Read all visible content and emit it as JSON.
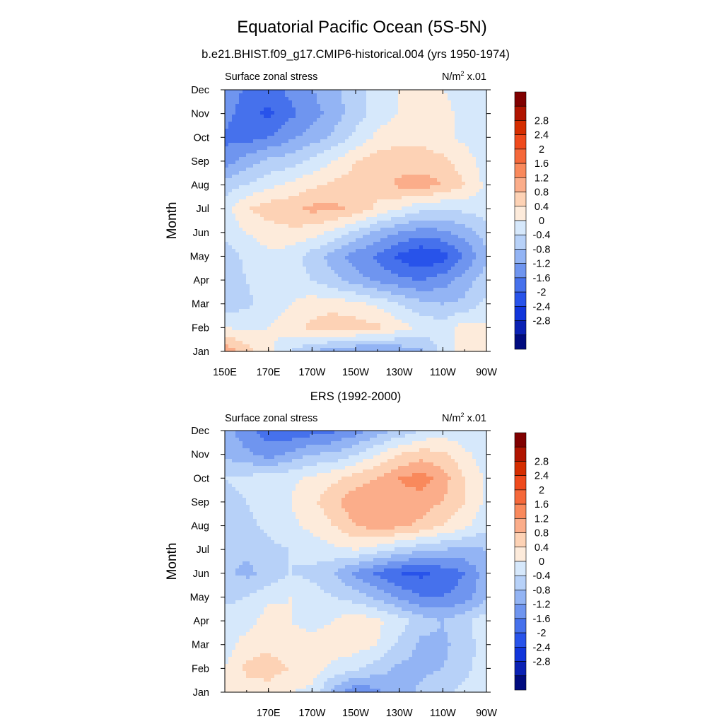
{
  "figure": {
    "title": "Equatorial Pacific Ocean (5S-5N)"
  },
  "chart_data": [
    {
      "type": "heatmap",
      "title": "b.e21.BHIST.f09_g17.CMIP6-historical.004 (yrs 1950-1974)",
      "left_label": "Surface zonal stress",
      "units_base": "N/m",
      "units_sup": "2",
      "units_tail": " x.01",
      "ylabel": "Month",
      "x_ticks": [
        "150E",
        "170E",
        "170W",
        "150W",
        "130W",
        "110W",
        "90W"
      ],
      "x_values": [
        150,
        170,
        190,
        210,
        230,
        250,
        270
      ],
      "xlim": [
        150,
        270
      ],
      "y_ticks": [
        "Jan",
        "Feb",
        "Mar",
        "Apr",
        "May",
        "Jun",
        "Jul",
        "Aug",
        "Sep",
        "Oct",
        "Nov",
        "Dec"
      ],
      "ylim": [
        1,
        12
      ],
      "grid": false,
      "legend": "right",
      "colorbar_levels": [
        "2.8",
        "2.4",
        "2",
        "1.6",
        "1.2",
        "0.8",
        "0.4",
        "0",
        "-0.4",
        "-0.8",
        "-1.2",
        "-1.6",
        "-2",
        "-2.4",
        "-2.8"
      ],
      "colorbar_colors": [
        "#800000",
        "#b01400",
        "#d52d00",
        "#ef4a1c",
        "#f5683a",
        "#f9895c",
        "#fbad8a",
        "#fdd2b5",
        "#fdebdb",
        "#d6e8fb",
        "#b7d1f8",
        "#93b4f4",
        "#6f95ef",
        "#4671ec",
        "#2853ea",
        "#1135db",
        "#0a21b4",
        "#000b7f"
      ],
      "grid_x": [
        150,
        160,
        170,
        180,
        190,
        200,
        210,
        220,
        230,
        240,
        250,
        260,
        270
      ],
      "values": [
        [
          1.5,
          1.0,
          0.5,
          0.0,
          -0.4,
          -0.7,
          -0.8,
          -0.8,
          -0.7,
          -0.5,
          0.1,
          0.6,
          0.5
        ],
        [
          0.4,
          0.3,
          0.4,
          0.6,
          0.9,
          1.1,
          1.0,
          0.9,
          0.6,
          0.3,
          0.2,
          0.6,
          0.5
        ],
        [
          -0.2,
          -0.1,
          0.2,
          0.4,
          0.6,
          0.6,
          0.5,
          0.3,
          0.0,
          -0.3,
          -0.4,
          -0.3,
          0.1
        ],
        [
          -0.3,
          0.0,
          0.2,
          0.2,
          0.0,
          -0.3,
          -0.6,
          -0.9,
          -1.1,
          -1.2,
          -1.0,
          -0.6,
          -0.2
        ],
        [
          -0.2,
          0.1,
          0.3,
          0.2,
          -0.2,
          -0.6,
          -1.0,
          -1.3,
          -1.7,
          -2.0,
          -1.8,
          -1.2,
          -0.5
        ],
        [
          0.1,
          0.4,
          0.6,
          0.7,
          0.6,
          0.3,
          -0.1,
          -0.5,
          -0.8,
          -1.0,
          -0.9,
          -0.6,
          -0.2
        ],
        [
          0.2,
          0.8,
          1.0,
          1.1,
          1.3,
          1.3,
          1.1,
          0.7,
          0.4,
          0.1,
          0.0,
          0.1,
          0.2
        ],
        [
          -0.2,
          0.0,
          0.3,
          0.5,
          0.7,
          0.9,
          1.0,
          1.0,
          1.3,
          1.4,
          1.2,
          0.8,
          0.3
        ],
        [
          -1.0,
          -0.6,
          -0.3,
          -0.2,
          0.1,
          0.4,
          0.8,
          1.0,
          1.0,
          1.0,
          0.9,
          0.6,
          0.2
        ],
        [
          -1.3,
          -1.4,
          -1.2,
          -0.9,
          -0.6,
          -0.3,
          0.1,
          0.5,
          0.7,
          0.7,
          0.5,
          0.3,
          0.1
        ],
        [
          -1.0,
          -1.5,
          -1.7,
          -1.3,
          -1.0,
          -0.6,
          -0.2,
          0.2,
          0.4,
          0.6,
          0.5,
          0.3,
          0.0
        ],
        [
          -0.8,
          -1.3,
          -1.4,
          -1.1,
          -0.8,
          -0.5,
          -0.2,
          0.2,
          0.4,
          0.5,
          0.4,
          0.3,
          0.0
        ]
      ]
    },
    {
      "type": "heatmap",
      "title": "ERS (1992-2000)",
      "left_label": "Surface zonal stress",
      "units_base": "N/m",
      "units_sup": "2",
      "units_tail": " x.01",
      "ylabel": "Month",
      "x_ticks": [
        "170E",
        "170W",
        "150W",
        "130W",
        "110W",
        "90W"
      ],
      "x_values": [
        170,
        190,
        210,
        230,
        250,
        270
      ],
      "xlim": [
        150,
        270
      ],
      "y_ticks": [
        "Jan",
        "Feb",
        "Mar",
        "Apr",
        "May",
        "Jun",
        "Jul",
        "Aug",
        "Sep",
        "Oct",
        "Nov",
        "Dec"
      ],
      "ylim": [
        1,
        12
      ],
      "grid": false,
      "legend": "right",
      "colorbar_levels": [
        "2.8",
        "2.4",
        "2",
        "1.6",
        "1.2",
        "0.8",
        "0.4",
        "0",
        "-0.4",
        "-0.8",
        "-1.2",
        "-1.6",
        "-2",
        "-2.4",
        "-2.8"
      ],
      "colorbar_colors": [
        "#800000",
        "#b01400",
        "#d52d00",
        "#ef4a1c",
        "#f5683a",
        "#f9895c",
        "#fbad8a",
        "#fdd2b5",
        "#fdebdb",
        "#d6e8fb",
        "#b7d1f8",
        "#93b4f4",
        "#6f95ef",
        "#4671ec",
        "#2853ea",
        "#1135db",
        "#0a21b4",
        "#000b7f"
      ],
      "grid_x": [
        150,
        160,
        170,
        180,
        190,
        200,
        210,
        220,
        230,
        240,
        250,
        260,
        270
      ],
      "values": [
        [
          0.4,
          0.6,
          0.6,
          0.4,
          0.3,
          -0.6,
          -1.2,
          -0.9,
          -0.6,
          -0.3,
          -0.1,
          0.1,
          0.2
        ],
        [
          0.4,
          0.9,
          1.0,
          0.8,
          0.6,
          0.3,
          0.1,
          -0.2,
          -0.5,
          -0.5,
          -0.4,
          -0.1,
          0.2
        ],
        [
          0.2,
          0.6,
          0.7,
          0.5,
          0.5,
          0.6,
          0.6,
          0.4,
          -0.1,
          -0.5,
          -0.5,
          -0.2,
          0.2
        ],
        [
          0.2,
          0.2,
          0.6,
          0.4,
          0.3,
          0.4,
          0.7,
          0.5,
          0.2,
          -0.2,
          -0.4,
          -0.1,
          0.3
        ],
        [
          -0.1,
          0.0,
          0.3,
          0.4,
          0.2,
          0.0,
          -0.2,
          -0.5,
          -0.9,
          -1.2,
          -1.2,
          -1.0,
          -0.5
        ],
        [
          -0.3,
          -0.5,
          -0.3,
          0.0,
          -0.1,
          -0.4,
          -0.9,
          -1.3,
          -1.6,
          -1.7,
          -1.5,
          -1.2,
          -0.6
        ],
        [
          -0.4,
          -0.3,
          -0.1,
          0.0,
          0.2,
          0.3,
          0.4,
          0.2,
          -0.1,
          -0.3,
          -0.4,
          -0.5,
          -0.4
        ],
        [
          -0.2,
          -0.1,
          0.1,
          0.3,
          0.5,
          0.8,
          1.2,
          1.4,
          1.3,
          1.1,
          0.8,
          0.5,
          0.1
        ],
        [
          -0.1,
          0.0,
          0.2,
          0.4,
          0.7,
          1.1,
          1.5,
          1.6,
          1.5,
          1.4,
          1.2,
          0.8,
          0.3
        ],
        [
          0.0,
          0.1,
          0.2,
          0.3,
          0.5,
          0.7,
          1.0,
          1.2,
          1.6,
          1.8,
          1.4,
          0.8,
          0.3
        ],
        [
          -0.5,
          -0.7,
          -1.0,
          -0.7,
          -0.4,
          -0.3,
          0.0,
          0.4,
          0.8,
          1.0,
          0.9,
          0.5,
          0.2
        ],
        [
          -0.6,
          -1.1,
          -1.4,
          -1.5,
          -1.4,
          -1.3,
          -1.0,
          -0.6,
          -0.3,
          0.0,
          0.2,
          0.1,
          0.0
        ]
      ]
    }
  ]
}
